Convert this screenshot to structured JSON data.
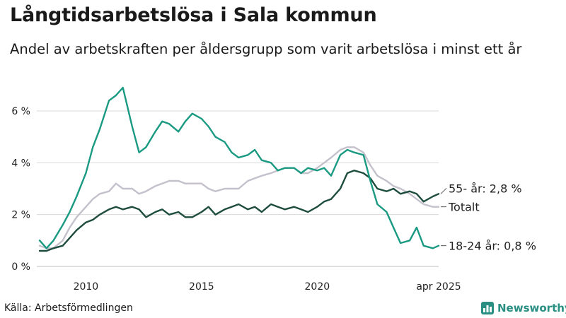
{
  "title": "Långtidsarbetslösa i Sala kommun",
  "subtitle": "Andel av arbetskraften per åldersgrupp som varit arbetslösa i minst ett år",
  "source": "Källa: Arbetsförmedlingen",
  "brand": "Newsworthy",
  "colors": {
    "youth": "#1a9a82",
    "older": "#1e4d3f",
    "total": "#c4c0cc",
    "grid": "#d8d8d8",
    "label": "#222222",
    "brand": "#2a8f83"
  },
  "chart_data": {
    "type": "line",
    "ylim": [
      0,
      7.5
    ],
    "xlim": [
      2008.0,
      2025.25
    ],
    "y_ticks": [
      {
        "value": 0,
        "label": "0 %"
      },
      {
        "value": 2,
        "label": "2 %"
      },
      {
        "value": 4,
        "label": "4 %"
      },
      {
        "value": 6,
        "label": "6 %"
      }
    ],
    "x_ticks": [
      {
        "value": 2010,
        "label": "2010"
      },
      {
        "value": 2015,
        "label": "2015"
      },
      {
        "value": 2020,
        "label": "2020"
      },
      {
        "value": 2025.25,
        "label": "apr 2025"
      }
    ],
    "grid": true,
    "series": [
      {
        "key": "total",
        "end_label": "Totalt",
        "points": [
          [
            2008.0,
            0.8
          ],
          [
            2008.3,
            0.7
          ],
          [
            2008.6,
            0.7
          ],
          [
            2009.0,
            1.0
          ],
          [
            2009.3,
            1.5
          ],
          [
            2009.6,
            1.9
          ],
          [
            2010.0,
            2.3
          ],
          [
            2010.3,
            2.6
          ],
          [
            2010.6,
            2.8
          ],
          [
            2011.0,
            2.9
          ],
          [
            2011.3,
            3.2
          ],
          [
            2011.6,
            3.0
          ],
          [
            2012.0,
            3.0
          ],
          [
            2012.3,
            2.8
          ],
          [
            2012.6,
            2.9
          ],
          [
            2013.0,
            3.1
          ],
          [
            2013.3,
            3.2
          ],
          [
            2013.6,
            3.3
          ],
          [
            2014.0,
            3.3
          ],
          [
            2014.3,
            3.2
          ],
          [
            2014.6,
            3.2
          ],
          [
            2015.0,
            3.2
          ],
          [
            2015.3,
            3.0
          ],
          [
            2015.6,
            2.9
          ],
          [
            2016.0,
            3.0
          ],
          [
            2016.3,
            3.0
          ],
          [
            2016.6,
            3.0
          ],
          [
            2017.0,
            3.3
          ],
          [
            2017.3,
            3.4
          ],
          [
            2017.6,
            3.5
          ],
          [
            2018.0,
            3.6
          ],
          [
            2018.3,
            3.7
          ],
          [
            2018.6,
            3.8
          ],
          [
            2019.0,
            3.8
          ],
          [
            2019.3,
            3.6
          ],
          [
            2019.6,
            3.6
          ],
          [
            2020.0,
            3.8
          ],
          [
            2020.3,
            4.0
          ],
          [
            2020.6,
            4.2
          ],
          [
            2021.0,
            4.5
          ],
          [
            2021.3,
            4.6
          ],
          [
            2021.6,
            4.6
          ],
          [
            2022.0,
            4.4
          ],
          [
            2022.3,
            3.9
          ],
          [
            2022.6,
            3.5
          ],
          [
            2023.0,
            3.3
          ],
          [
            2023.3,
            3.1
          ],
          [
            2023.6,
            3.0
          ],
          [
            2024.0,
            2.8
          ],
          [
            2024.3,
            2.6
          ],
          [
            2024.6,
            2.4
          ],
          [
            2025.0,
            2.3
          ],
          [
            2025.25,
            2.3
          ]
        ]
      },
      {
        "key": "older",
        "end_label": "55- år: 2,8 %",
        "points": [
          [
            2008.0,
            0.6
          ],
          [
            2008.3,
            0.6
          ],
          [
            2008.6,
            0.7
          ],
          [
            2009.0,
            0.8
          ],
          [
            2009.3,
            1.1
          ],
          [
            2009.6,
            1.4
          ],
          [
            2010.0,
            1.7
          ],
          [
            2010.3,
            1.8
          ],
          [
            2010.6,
            2.0
          ],
          [
            2011.0,
            2.2
          ],
          [
            2011.3,
            2.3
          ],
          [
            2011.6,
            2.2
          ],
          [
            2012.0,
            2.3
          ],
          [
            2012.3,
            2.2
          ],
          [
            2012.6,
            1.9
          ],
          [
            2013.0,
            2.1
          ],
          [
            2013.3,
            2.2
          ],
          [
            2013.6,
            2.0
          ],
          [
            2014.0,
            2.1
          ],
          [
            2014.3,
            1.9
          ],
          [
            2014.6,
            1.9
          ],
          [
            2015.0,
            2.1
          ],
          [
            2015.3,
            2.3
          ],
          [
            2015.6,
            2.0
          ],
          [
            2016.0,
            2.2
          ],
          [
            2016.3,
            2.3
          ],
          [
            2016.6,
            2.4
          ],
          [
            2017.0,
            2.2
          ],
          [
            2017.3,
            2.3
          ],
          [
            2017.6,
            2.1
          ],
          [
            2018.0,
            2.4
          ],
          [
            2018.3,
            2.3
          ],
          [
            2018.6,
            2.2
          ],
          [
            2019.0,
            2.3
          ],
          [
            2019.3,
            2.2
          ],
          [
            2019.6,
            2.1
          ],
          [
            2020.0,
            2.3
          ],
          [
            2020.3,
            2.5
          ],
          [
            2020.6,
            2.6
          ],
          [
            2021.0,
            3.0
          ],
          [
            2021.3,
            3.6
          ],
          [
            2021.6,
            3.7
          ],
          [
            2022.0,
            3.6
          ],
          [
            2022.3,
            3.4
          ],
          [
            2022.6,
            3.0
          ],
          [
            2023.0,
            2.9
          ],
          [
            2023.3,
            3.0
          ],
          [
            2023.6,
            2.8
          ],
          [
            2024.0,
            2.9
          ],
          [
            2024.3,
            2.8
          ],
          [
            2024.6,
            2.5
          ],
          [
            2025.0,
            2.7
          ],
          [
            2025.25,
            2.8
          ]
        ]
      },
      {
        "key": "youth",
        "end_label": "18-24 år: 0,8 %",
        "points": [
          [
            2008.0,
            1.0
          ],
          [
            2008.3,
            0.7
          ],
          [
            2008.6,
            1.0
          ],
          [
            2009.0,
            1.6
          ],
          [
            2009.3,
            2.1
          ],
          [
            2009.6,
            2.7
          ],
          [
            2010.0,
            3.6
          ],
          [
            2010.3,
            4.6
          ],
          [
            2010.6,
            5.3
          ],
          [
            2011.0,
            6.4
          ],
          [
            2011.3,
            6.6
          ],
          [
            2011.6,
            6.9
          ],
          [
            2012.0,
            5.4
          ],
          [
            2012.3,
            4.4
          ],
          [
            2012.6,
            4.6
          ],
          [
            2013.0,
            5.2
          ],
          [
            2013.3,
            5.6
          ],
          [
            2013.6,
            5.5
          ],
          [
            2014.0,
            5.2
          ],
          [
            2014.3,
            5.6
          ],
          [
            2014.6,
            5.9
          ],
          [
            2015.0,
            5.7
          ],
          [
            2015.3,
            5.4
          ],
          [
            2015.6,
            5.0
          ],
          [
            2016.0,
            4.8
          ],
          [
            2016.3,
            4.4
          ],
          [
            2016.6,
            4.2
          ],
          [
            2017.0,
            4.3
          ],
          [
            2017.3,
            4.5
          ],
          [
            2017.6,
            4.1
          ],
          [
            2018.0,
            4.0
          ],
          [
            2018.3,
            3.7
          ],
          [
            2018.6,
            3.8
          ],
          [
            2019.0,
            3.8
          ],
          [
            2019.3,
            3.6
          ],
          [
            2019.6,
            3.8
          ],
          [
            2020.0,
            3.7
          ],
          [
            2020.3,
            3.8
          ],
          [
            2020.6,
            3.5
          ],
          [
            2021.0,
            4.3
          ],
          [
            2021.3,
            4.5
          ],
          [
            2021.6,
            4.4
          ],
          [
            2022.0,
            4.3
          ],
          [
            2022.3,
            3.3
          ],
          [
            2022.6,
            2.4
          ],
          [
            2023.0,
            2.1
          ],
          [
            2023.3,
            1.5
          ],
          [
            2023.6,
            0.9
          ],
          [
            2024.0,
            1.0
          ],
          [
            2024.3,
            1.5
          ],
          [
            2024.6,
            0.8
          ],
          [
            2025.0,
            0.7
          ],
          [
            2025.25,
            0.8
          ]
        ]
      }
    ]
  }
}
